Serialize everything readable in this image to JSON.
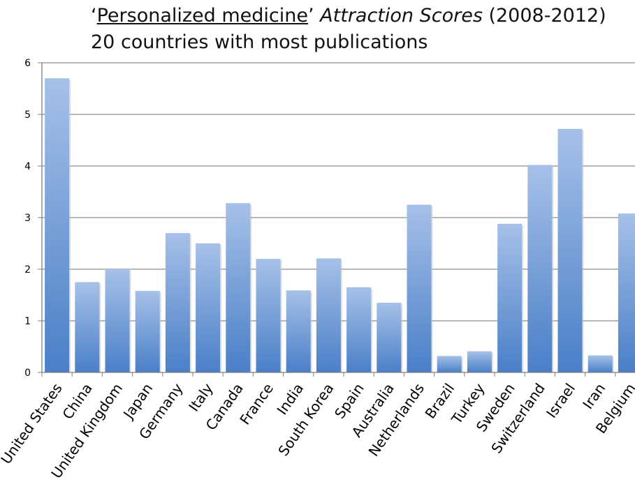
{
  "title": {
    "quote_open": "‘",
    "underlined": "Personalized medicine",
    "quote_close": "’ ",
    "italic": "Attraction Scores",
    "rest": " (2008-2012)",
    "subtitle": "20 countries with most publications"
  },
  "chart_data": {
    "type": "bar",
    "title": "‘Personalized medicine’ Attraction Scores (2008-2012) 20 countries with most publications",
    "xlabel": "",
    "ylabel": "",
    "ylim": [
      0,
      6
    ],
    "yticks": [
      0,
      1,
      2,
      3,
      4,
      5,
      6
    ],
    "grid": true,
    "categories": [
      "United States",
      "China",
      "United Kingdom",
      "Japan",
      "Germany",
      "Italy",
      "Canada",
      "France",
      "India",
      "South Korea",
      "Spain",
      "Australia",
      "Netherlands",
      "Brazil",
      "Turkey",
      "Sweden",
      "Switzerland",
      "Israel",
      "Iran",
      "Belgium"
    ],
    "values": [
      5.7,
      1.75,
      2.0,
      1.58,
      2.7,
      2.5,
      3.28,
      2.2,
      1.59,
      2.21,
      1.65,
      1.35,
      3.25,
      0.32,
      0.41,
      2.88,
      4.02,
      4.72,
      0.33,
      3.08
    ],
    "colors": {
      "bar_top": "#a6c1e8",
      "bar_bottom": "#4a7fc8",
      "grid": "#8c8c8c",
      "axis": "#7f7f7f"
    }
  }
}
